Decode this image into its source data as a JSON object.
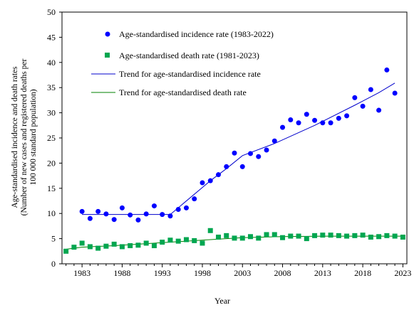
{
  "chart_data": {
    "type": "scatter",
    "xlabel": "Year",
    "ylabel_lines": [
      "Age-standardised incidence and death rates",
      "(Number of new cases and registered deaths per",
      "100 000 standard population)"
    ],
    "xlim": [
      1980.5,
      2023.5
    ],
    "ylim": [
      0,
      50
    ],
    "x_ticks": [
      1983,
      1988,
      1993,
      1998,
      2003,
      2008,
      2013,
      2018,
      2023
    ],
    "y_ticks": [
      0,
      5,
      10,
      15,
      20,
      25,
      30,
      35,
      40,
      45,
      50
    ],
    "grid": false,
    "legend_position": "top-left",
    "series": [
      {
        "name": "Age-standardised incidence rate (1983-2022)",
        "kind": "scatter",
        "marker": "circle",
        "color": "#0000ff",
        "x": [
          1983,
          1984,
          1985,
          1986,
          1987,
          1988,
          1989,
          1990,
          1991,
          1992,
          1993,
          1994,
          1995,
          1996,
          1997,
          1998,
          1999,
          2000,
          2001,
          2002,
          2003,
          2004,
          2005,
          2006,
          2007,
          2008,
          2009,
          2010,
          2011,
          2012,
          2013,
          2014,
          2015,
          2016,
          2017,
          2018,
          2019,
          2020,
          2021,
          2022
        ],
        "y": [
          10.4,
          9.0,
          10.4,
          9.9,
          8.8,
          11.1,
          9.7,
          8.7,
          9.9,
          11.5,
          9.8,
          9.5,
          10.8,
          11.1,
          12.9,
          16.1,
          16.5,
          17.7,
          19.3,
          22.0,
          19.3,
          21.9,
          21.3,
          22.6,
          24.4,
          27.1,
          28.6,
          28.0,
          29.7,
          28.5,
          28.0,
          28.0,
          28.9,
          29.4,
          33.0,
          31.3,
          34.6,
          30.5,
          38.5,
          33.9
        ]
      },
      {
        "name": "Age-standardised death rate (1981-2023)",
        "kind": "scatter",
        "marker": "square",
        "color": "#00a650",
        "x": [
          1981,
          1982,
          1983,
          1984,
          1985,
          1986,
          1987,
          1988,
          1989,
          1990,
          1991,
          1992,
          1993,
          1994,
          1995,
          1996,
          1997,
          1998,
          1999,
          2000,
          2001,
          2002,
          2003,
          2004,
          2005,
          2006,
          2007,
          2008,
          2009,
          2010,
          2011,
          2012,
          2013,
          2014,
          2015,
          2016,
          2017,
          2018,
          2019,
          2020,
          2021,
          2022,
          2023
        ],
        "y": [
          2.5,
          3.3,
          4.1,
          3.4,
          3.1,
          3.5,
          3.9,
          3.4,
          3.6,
          3.7,
          4.1,
          3.6,
          4.3,
          4.7,
          4.5,
          4.8,
          4.6,
          4.1,
          6.6,
          5.3,
          5.6,
          5.1,
          5.1,
          5.4,
          5.1,
          5.8,
          5.8,
          5.2,
          5.5,
          5.5,
          5.0,
          5.6,
          5.7,
          5.7,
          5.6,
          5.5,
          5.6,
          5.7,
          5.3,
          5.4,
          5.6,
          5.5,
          5.3
        ]
      },
      {
        "name": "Trend for age-standardised incidence rate",
        "kind": "line",
        "color": "#0000cc",
        "x": [
          1983,
          1994,
          1999,
          2001,
          2003,
          2007,
          2012,
          2017,
          2020,
          2022
        ],
        "y": [
          9.8,
          9.8,
          16.5,
          18.9,
          21.5,
          23.9,
          27.5,
          31.5,
          34.0,
          35.9
        ]
      },
      {
        "name": "Trend for age-standardised death rate",
        "kind": "line",
        "color": "#008000",
        "x": [
          1981,
          1983,
          1987,
          1993,
          1999,
          2003,
          2008,
          2013,
          2018,
          2023
        ],
        "y": [
          2.9,
          3.3,
          3.6,
          4.2,
          4.8,
          5.2,
          5.4,
          5.5,
          5.5,
          5.5
        ]
      }
    ]
  }
}
